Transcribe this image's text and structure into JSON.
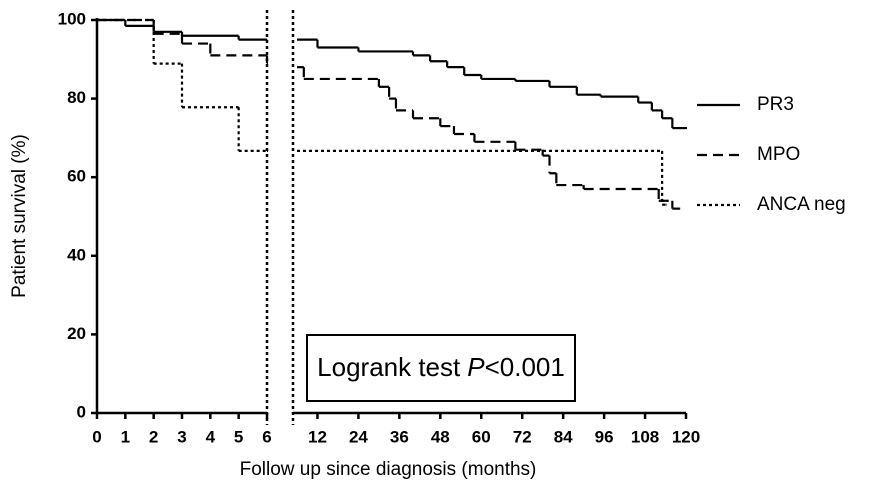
{
  "chart_data": [
    {
      "type": "step",
      "y_label": "Patient survival (%)",
      "x_label": "Follow up since diagnosis (months)",
      "xlim": [
        0,
        6
      ],
      "xticks": [
        0,
        1,
        2,
        3,
        4,
        5,
        6
      ],
      "ylim": [
        0,
        100
      ],
      "yticks": [
        0,
        20,
        40,
        60,
        80,
        100
      ],
      "series": [
        {
          "color": "#000000",
          "dash": "solid",
          "x": [
            0,
            1,
            2,
            3,
            5,
            6
          ],
          "values": [
            100,
            98.5,
            97,
            96,
            95,
            94.5
          ]
        },
        {
          "color": "#000000",
          "dash": "dashed",
          "x": [
            0,
            2,
            3,
            4,
            6
          ],
          "values": [
            100,
            96.5,
            94,
            91,
            89
          ]
        },
        {
          "color": "#000000",
          "dash": "dotted",
          "x": [
            0,
            2,
            3,
            5,
            6
          ],
          "values": [
            100,
            88.9,
            77.8,
            66.7,
            66.7
          ]
        }
      ]
    },
    {
      "type": "step",
      "xlim": [
        6,
        120
      ],
      "xticks": [
        12,
        24,
        36,
        48,
        60,
        72,
        84,
        96,
        108,
        120
      ],
      "annotation": [
        "Logrank test",
        "P",
        "<0.001"
      ],
      "series": [
        {
          "name": "PR3",
          "color": "#000000",
          "dash": "solid",
          "x": [
            6,
            12,
            24,
            40,
            45,
            50,
            55,
            60,
            70,
            80,
            88,
            95,
            106,
            110,
            113,
            116,
            120
          ],
          "values": [
            95,
            93,
            92,
            91,
            89.5,
            88,
            86,
            85,
            84.5,
            83,
            81,
            80.5,
            79,
            77,
            75,
            72.5,
            72.5
          ]
        },
        {
          "name": "MPO",
          "color": "#000000",
          "dash": "dashed",
          "x": [
            6,
            8,
            30,
            33,
            35,
            40,
            48,
            52,
            58,
            70,
            78,
            80,
            82,
            90,
            112,
            116,
            118
          ],
          "values": [
            88,
            85,
            83,
            80,
            77,
            75,
            73,
            71,
            69,
            67,
            65.5,
            61,
            58,
            57,
            54,
            52,
            52
          ]
        },
        {
          "name": "ANCA neg",
          "color": "#000000",
          "dash": "dotted",
          "x": [
            6,
            113,
            114
          ],
          "values": [
            66.7,
            53,
            53
          ]
        }
      ]
    }
  ]
}
